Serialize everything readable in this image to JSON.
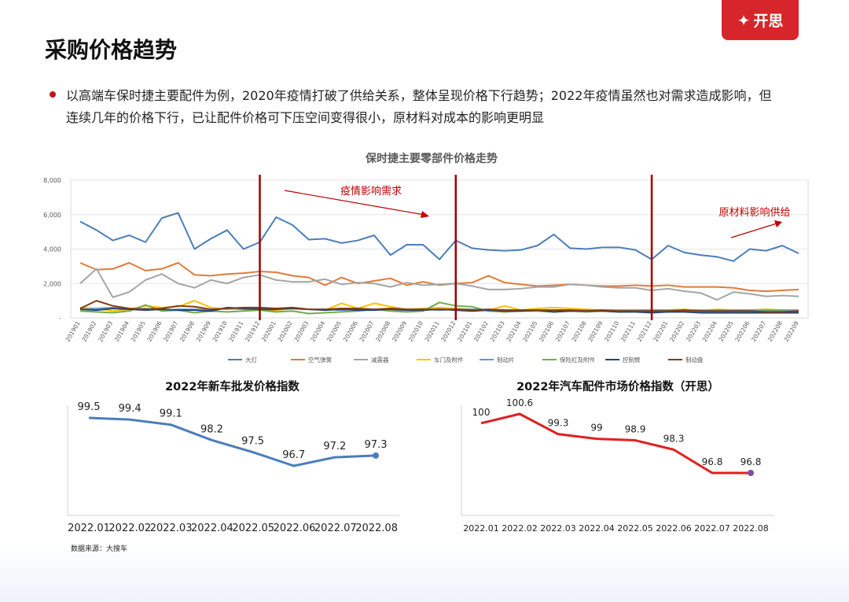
{
  "header": {
    "title": "采购价格趋势",
    "logo_text": "开思",
    "brand_color": "#d6262b"
  },
  "bullet": {
    "text": "以高端车保时捷主要配件为例，2020年疫情打破了供给关系，整体呈现价格下行趋势；2022年疫情虽然也对需求造成影响，但连续几年的价格下行，已让配件价格可下压空间变得很小，原材料对成本的影响更明显"
  },
  "source_note": "数据来源：大搜车",
  "chart_data": [
    {
      "type": "line",
      "title": "保时捷主要零部件价格走势",
      "categories": [
        "201901",
        "201902",
        "201903",
        "201904",
        "201905",
        "201906",
        "201907",
        "201908",
        "201909",
        "201910",
        "201911",
        "201912",
        "202001",
        "202002",
        "202003",
        "202004",
        "202005",
        "202006",
        "202007",
        "202008",
        "202009",
        "202010",
        "202011",
        "202012",
        "202101",
        "202102",
        "202103",
        "202104",
        "202105",
        "202106",
        "202107",
        "202108",
        "202109",
        "202110",
        "202111",
        "202112",
        "202201",
        "202202",
        "202203",
        "202204",
        "202205",
        "202206",
        "202207",
        "202208",
        "202209"
      ],
      "ylim": [
        0,
        8000
      ],
      "yticks": [
        "-",
        "2,000",
        "4,000",
        "6,000",
        "8,000"
      ],
      "grid": true,
      "legend": "bottom",
      "annotations": [
        {
          "text": "疫情影响需求",
          "color": "#c00000"
        },
        {
          "text": "原材料影响供给",
          "color": "#c00000"
        }
      ],
      "vlines_at": [
        "201912",
        "202012",
        "202112"
      ],
      "series": [
        {
          "name": "大灯",
          "color": "#4a7ebb",
          "values": [
            5600,
            5100,
            4500,
            4800,
            4400,
            5800,
            6100,
            4000,
            4600,
            5100,
            4000,
            4400,
            5850,
            5400,
            4550,
            4600,
            4350,
            4500,
            4800,
            3650,
            4250,
            4250,
            3400,
            4500,
            4050,
            3950,
            3900,
            3950,
            4200,
            4850,
            4050,
            4000,
            4100,
            4100,
            3950,
            3400,
            4200,
            3800,
            3650,
            3550,
            3300,
            4000,
            3900,
            4200,
            3750
          ]
        },
        {
          "name": "空气弹簧",
          "color": "#e07b39",
          "values": [
            3200,
            2800,
            2850,
            3200,
            2750,
            2850,
            3200,
            2500,
            2450,
            2550,
            2600,
            2700,
            2650,
            2450,
            2350,
            1900,
            2350,
            2000,
            2150,
            2300,
            1900,
            2100,
            1900,
            2000,
            2050,
            2450,
            2050,
            1950,
            1850,
            1900,
            1950,
            1900,
            1850,
            1850,
            1900,
            1850,
            1900,
            1800,
            1800,
            1800,
            1750,
            1600,
            1550,
            1600,
            1650
          ]
        },
        {
          "name": "减震器",
          "color": "#a5a5a5",
          "values": [
            2000,
            2850,
            1200,
            1500,
            2200,
            2550,
            2000,
            1750,
            2200,
            2000,
            2350,
            2500,
            2200,
            2100,
            2100,
            2250,
            1950,
            2050,
            2000,
            1800,
            2050,
            1900,
            1950,
            2000,
            1850,
            1650,
            1650,
            1700,
            1800,
            1800,
            1950,
            1900,
            1800,
            1750,
            1750,
            1600,
            1700,
            1550,
            1450,
            1050,
            1500,
            1400,
            1250,
            1300,
            1250
          ]
        },
        {
          "name": "车门及附件",
          "color": "#ffc000",
          "values": [
            600,
            550,
            400,
            500,
            700,
            600,
            650,
            1000,
            600,
            500,
            550,
            450,
            450,
            550,
            500,
            450,
            850,
            550,
            850,
            650,
            500,
            550,
            600,
            550,
            500,
            450,
            700,
            450,
            550,
            600,
            550,
            500,
            450,
            400,
            450,
            450,
            450,
            500,
            400,
            500,
            450,
            450,
            500,
            450,
            400
          ]
        },
        {
          "name": "制动片",
          "color": "#5b9bd5",
          "values": [
            500,
            550,
            600,
            500,
            550,
            450,
            500,
            500,
            450,
            550,
            500,
            500,
            500,
            550,
            500,
            500,
            450,
            500,
            500,
            500,
            450,
            500,
            450,
            500,
            500,
            450,
            450,
            450,
            450,
            450,
            450,
            450,
            450,
            450,
            450,
            450,
            450,
            450,
            450,
            450,
            450,
            450,
            450,
            450,
            450
          ]
        },
        {
          "name": "保险杠及附件",
          "color": "#70ad47",
          "values": [
            400,
            350,
            300,
            400,
            750,
            400,
            450,
            300,
            400,
            350,
            400,
            450,
            350,
            400,
            250,
            300,
            350,
            400,
            500,
            400,
            350,
            400,
            900,
            700,
            650,
            400,
            350,
            400,
            400,
            350,
            400,
            350,
            400,
            350,
            400,
            350,
            350,
            400,
            400,
            350,
            400,
            350,
            400,
            400,
            350
          ]
        },
        {
          "name": "控制臂",
          "color": "#264478",
          "values": [
            500,
            450,
            550,
            500,
            450,
            500,
            450,
            450,
            400,
            600,
            550,
            500,
            500,
            550,
            500,
            450,
            500,
            450,
            450,
            500,
            450,
            450,
            500,
            450,
            400,
            450,
            400,
            400,
            450,
            350,
            400,
            400,
            400,
            350,
            350,
            300,
            350,
            350,
            300,
            300,
            300,
            300,
            300,
            300,
            300
          ]
        },
        {
          "name": "制动盘",
          "color": "#843c0c",
          "values": [
            550,
            1000,
            700,
            550,
            500,
            550,
            700,
            650,
            500,
            550,
            600,
            600,
            550,
            600,
            500,
            500,
            550,
            550,
            500,
            550,
            500,
            500,
            500,
            500,
            450,
            500,
            450,
            450,
            450,
            450,
            450,
            400,
            450,
            400,
            400,
            400,
            400,
            450,
            400,
            400,
            400,
            400,
            350,
            350,
            400
          ]
        }
      ]
    },
    {
      "type": "line",
      "title": "2022年新车批发价格指数",
      "categories": [
        "2022.01",
        "2022.02",
        "2022.03",
        "2022.04",
        "2022.05",
        "2022.06",
        "2022.07",
        "2022.08"
      ],
      "values": [
        99.5,
        99.4,
        99.1,
        98.2,
        97.5,
        96.7,
        97.2,
        97.3
      ],
      "color": "#4a7ebb"
    },
    {
      "type": "line",
      "title": "2022年汽车配件市场价格指数（开思）",
      "categories": [
        "2022.01",
        "2022.02",
        "2022.03",
        "2022.04",
        "2022.05",
        "2022.06",
        "2022.07",
        "2022.08"
      ],
      "values": [
        100,
        100.6,
        99.3,
        99,
        98.9,
        98.3,
        96.8,
        96.8
      ],
      "color": "#e02020"
    }
  ]
}
